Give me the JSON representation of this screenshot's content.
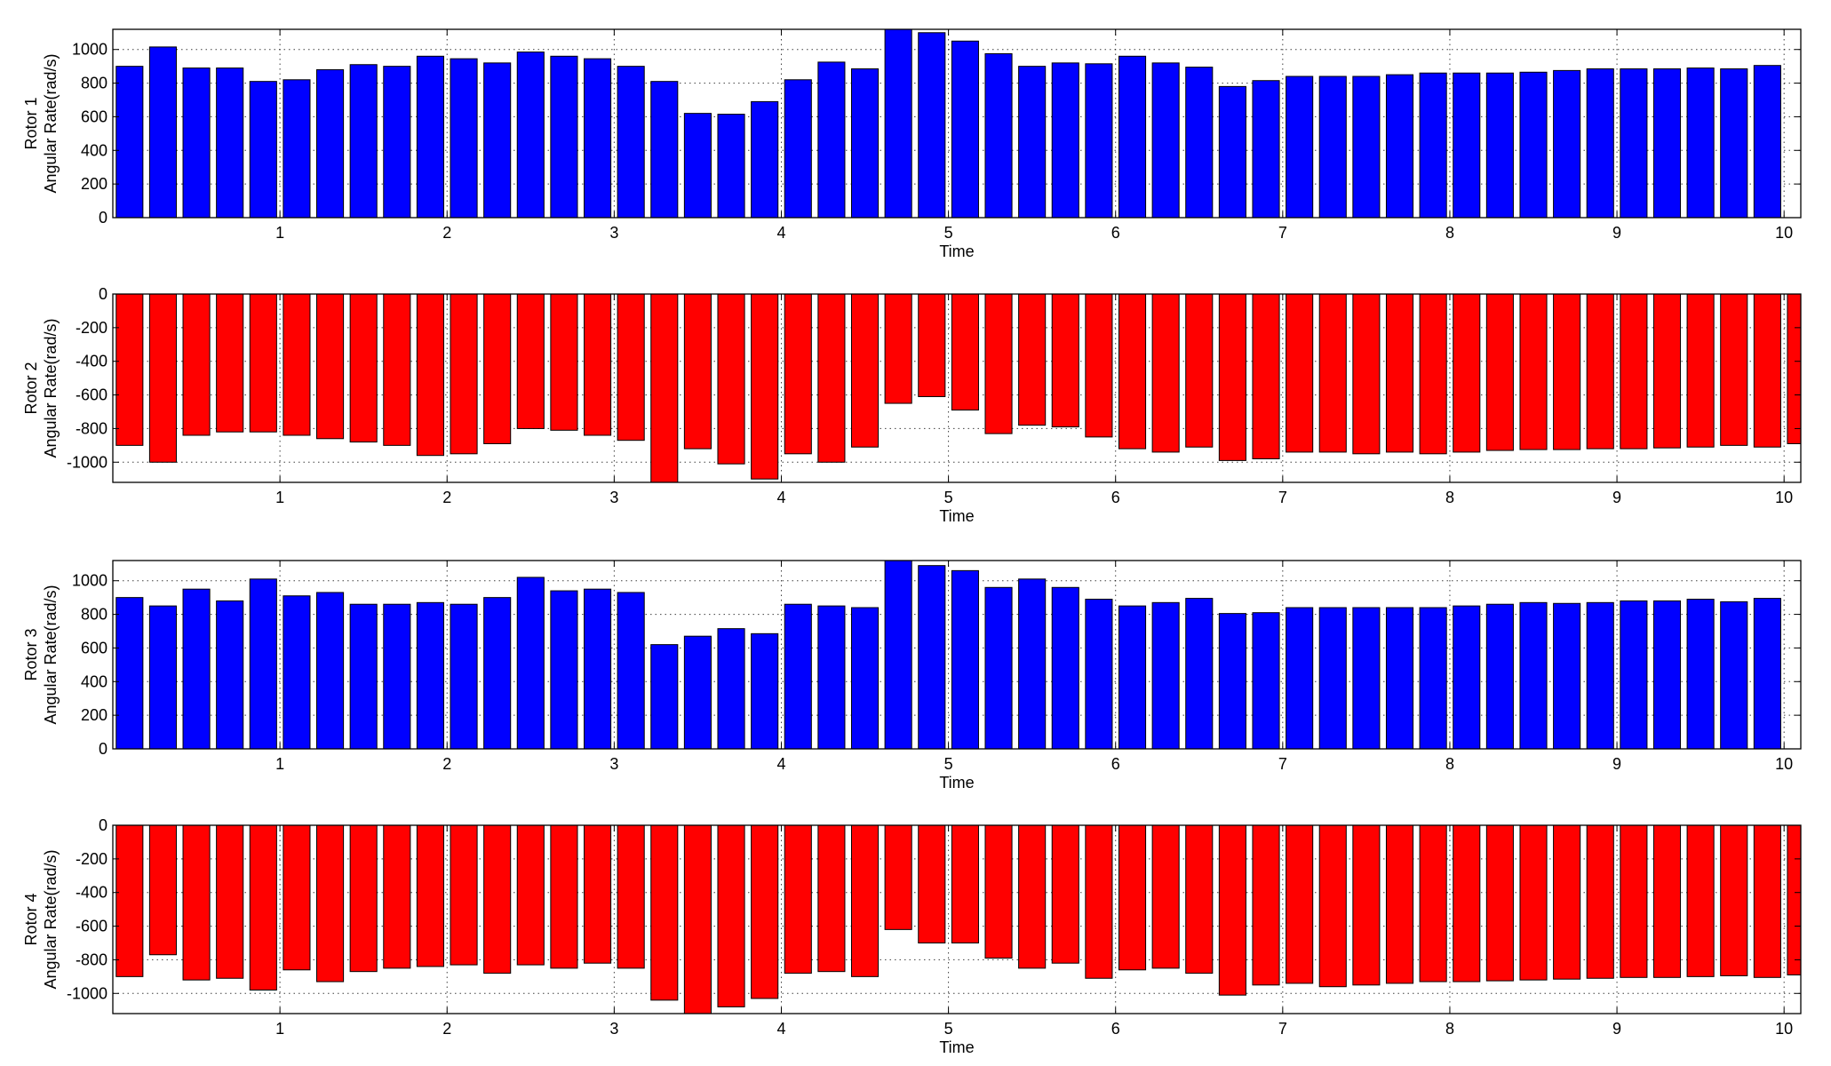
{
  "figure": {
    "colors": {
      "positive_bars": "#0000ff",
      "negative_bars": "#ff0000",
      "axes": "#000000",
      "background": "#ffffff"
    }
  },
  "chart_data": [
    {
      "type": "bar",
      "ylabel_line1": "Rotor 1",
      "ylabel_line2": "Angular Rate(rad/s)",
      "xlabel": "Time",
      "xlim": [
        0.0,
        10.1
      ],
      "ylim": [
        0,
        1120
      ],
      "xticks": [
        1,
        2,
        3,
        4,
        5,
        6,
        7,
        8,
        9,
        10
      ],
      "yticks": [
        0,
        200,
        400,
        600,
        800,
        1000
      ],
      "grid": true,
      "bar_width": 0.16,
      "color": "#0000ff",
      "x": [
        0.1,
        0.3,
        0.5,
        0.7,
        0.9,
        1.1,
        1.3,
        1.5,
        1.7,
        1.9,
        2.1,
        2.3,
        2.5,
        2.7,
        2.9,
        3.1,
        3.3,
        3.5,
        3.7,
        3.9,
        4.1,
        4.3,
        4.5,
        4.7,
        4.9,
        5.1,
        5.3,
        5.5,
        5.7,
        5.9,
        6.1,
        6.3,
        6.5,
        6.7,
        6.9,
        7.1,
        7.3,
        7.5,
        7.7,
        7.9,
        8.1,
        8.3,
        8.5,
        8.7,
        8.9,
        9.1,
        9.3,
        9.5,
        9.7,
        9.9,
        10.1
      ],
      "values": [
        900,
        1015,
        890,
        890,
        810,
        820,
        880,
        910,
        900,
        960,
        945,
        920,
        985,
        960,
        945,
        900,
        810,
        620,
        615,
        690,
        820,
        925,
        885,
        1150,
        1100,
        1050,
        975,
        900,
        920,
        915,
        960,
        920,
        895,
        780,
        815,
        840,
        840,
        840,
        850,
        860,
        860,
        860,
        865,
        875,
        885,
        885,
        885,
        890,
        885,
        905,
        0
      ]
    },
    {
      "type": "bar",
      "ylabel_line1": "Rotor 2",
      "ylabel_line2": "Angular Rate(rad/s)",
      "xlabel": "Time",
      "xlim": [
        0.0,
        10.1
      ],
      "ylim": [
        -1120,
        0
      ],
      "xticks": [
        1,
        2,
        3,
        4,
        5,
        6,
        7,
        8,
        9,
        10
      ],
      "yticks": [
        -1000,
        -800,
        -600,
        -400,
        -200,
        0
      ],
      "grid": true,
      "bar_width": 0.16,
      "color": "#ff0000",
      "x": [
        0.1,
        0.3,
        0.5,
        0.7,
        0.9,
        1.1,
        1.3,
        1.5,
        1.7,
        1.9,
        2.1,
        2.3,
        2.5,
        2.7,
        2.9,
        3.1,
        3.3,
        3.5,
        3.7,
        3.9,
        4.1,
        4.3,
        4.5,
        4.7,
        4.9,
        5.1,
        5.3,
        5.5,
        5.7,
        5.9,
        6.1,
        6.3,
        6.5,
        6.7,
        6.9,
        7.1,
        7.3,
        7.5,
        7.7,
        7.9,
        8.1,
        8.3,
        8.5,
        8.7,
        8.9,
        9.1,
        9.3,
        9.5,
        9.7,
        9.9,
        10.1
      ],
      "values": [
        -900,
        -1000,
        -840,
        -820,
        -820,
        -840,
        -860,
        -880,
        -900,
        -960,
        -950,
        -890,
        -800,
        -810,
        -840,
        -870,
        -1150,
        -920,
        -1010,
        -1100,
        -950,
        -1000,
        -910,
        -650,
        -610,
        -690,
        -830,
        -780,
        -790,
        -850,
        -920,
        -940,
        -910,
        -990,
        -980,
        -940,
        -940,
        -950,
        -940,
        -950,
        -940,
        -930,
        -925,
        -925,
        -920,
        -920,
        -915,
        -910,
        -900,
        -910,
        -890
      ]
    },
    {
      "type": "bar",
      "ylabel_line1": "Rotor 3",
      "ylabel_line2": "Angular Rate(rad/s)",
      "xlabel": "Time",
      "xlim": [
        0.0,
        10.1
      ],
      "ylim": [
        0,
        1120
      ],
      "xticks": [
        1,
        2,
        3,
        4,
        5,
        6,
        7,
        8,
        9,
        10
      ],
      "yticks": [
        0,
        200,
        400,
        600,
        800,
        1000
      ],
      "grid": true,
      "bar_width": 0.16,
      "color": "#0000ff",
      "x": [
        0.1,
        0.3,
        0.5,
        0.7,
        0.9,
        1.1,
        1.3,
        1.5,
        1.7,
        1.9,
        2.1,
        2.3,
        2.5,
        2.7,
        2.9,
        3.1,
        3.3,
        3.5,
        3.7,
        3.9,
        4.1,
        4.3,
        4.5,
        4.7,
        4.9,
        5.1,
        5.3,
        5.5,
        5.7,
        5.9,
        6.1,
        6.3,
        6.5,
        6.7,
        6.9,
        7.1,
        7.3,
        7.5,
        7.7,
        7.9,
        8.1,
        8.3,
        8.5,
        8.7,
        8.9,
        9.1,
        9.3,
        9.5,
        9.7,
        9.9,
        10.1
      ],
      "values": [
        900,
        850,
        950,
        880,
        1010,
        910,
        930,
        860,
        860,
        870,
        860,
        900,
        1020,
        940,
        950,
        930,
        620,
        670,
        715,
        685,
        860,
        850,
        840,
        1150,
        1090,
        1060,
        960,
        1010,
        960,
        890,
        850,
        870,
        895,
        805,
        810,
        840,
        840,
        840,
        840,
        840,
        850,
        860,
        870,
        865,
        870,
        880,
        880,
        890,
        875,
        895,
        0
      ]
    },
    {
      "type": "bar",
      "ylabel_line1": "Rotor 4",
      "ylabel_line2": "Angular Rate(rad/s)",
      "xlabel": "Time",
      "xlim": [
        0.0,
        10.1
      ],
      "ylim": [
        -1120,
        0
      ],
      "xticks": [
        1,
        2,
        3,
        4,
        5,
        6,
        7,
        8,
        9,
        10
      ],
      "yticks": [
        -1000,
        -800,
        -600,
        -400,
        -200,
        0
      ],
      "grid": true,
      "bar_width": 0.16,
      "color": "#ff0000",
      "x": [
        0.1,
        0.3,
        0.5,
        0.7,
        0.9,
        1.1,
        1.3,
        1.5,
        1.7,
        1.9,
        2.1,
        2.3,
        2.5,
        2.7,
        2.9,
        3.1,
        3.3,
        3.5,
        3.7,
        3.9,
        4.1,
        4.3,
        4.5,
        4.7,
        4.9,
        5.1,
        5.3,
        5.5,
        5.7,
        5.9,
        6.1,
        6.3,
        6.5,
        6.7,
        6.9,
        7.1,
        7.3,
        7.5,
        7.7,
        7.9,
        8.1,
        8.3,
        8.5,
        8.7,
        8.9,
        9.1,
        9.3,
        9.5,
        9.7,
        9.9,
        10.1
      ],
      "values": [
        -900,
        -770,
        -920,
        -910,
        -980,
        -860,
        -930,
        -870,
        -850,
        -840,
        -830,
        -880,
        -830,
        -850,
        -820,
        -850,
        -1040,
        -1150,
        -1080,
        -1030,
        -880,
        -870,
        -900,
        -620,
        -700,
        -700,
        -790,
        -850,
        -820,
        -910,
        -860,
        -850,
        -880,
        -1010,
        -950,
        -940,
        -960,
        -950,
        -940,
        -930,
        -930,
        -925,
        -920,
        -915,
        -910,
        -905,
        -905,
        -900,
        -895,
        -905,
        -890
      ]
    }
  ]
}
